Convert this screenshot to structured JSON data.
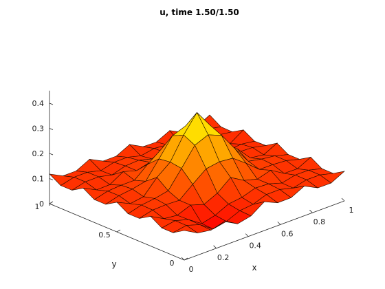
{
  "chart_data": {
    "type": "surface",
    "title": "u, time 1.50/1.50",
    "xlabel": "x",
    "ylabel": "y",
    "zlabel": "",
    "xlim": [
      0,
      1
    ],
    "ylim": [
      0,
      1
    ],
    "zlim": [
      0,
      0.45
    ],
    "x_ticks": [
      "0",
      "0.2",
      "0.4",
      "0.6",
      "0.8",
      "1"
    ],
    "x_tick_values": [
      0,
      0.2,
      0.4,
      0.6,
      0.8,
      1
    ],
    "y_ticks": [
      "0",
      "0.5",
      "1"
    ],
    "y_tick_values": [
      0,
      0.5,
      1
    ],
    "z_ticks": [
      "0",
      "0.1",
      "0.2",
      "0.3",
      "0.4"
    ],
    "z_tick_values": [
      0,
      0.1,
      0.2,
      0.3,
      0.4
    ],
    "grid_size": 13,
    "peak_value": 0.34,
    "base_level": 0.1,
    "colormap": "autumn",
    "colormap_low": "#ff0000",
    "colormap_high": "#ffff00",
    "grid": false
  }
}
